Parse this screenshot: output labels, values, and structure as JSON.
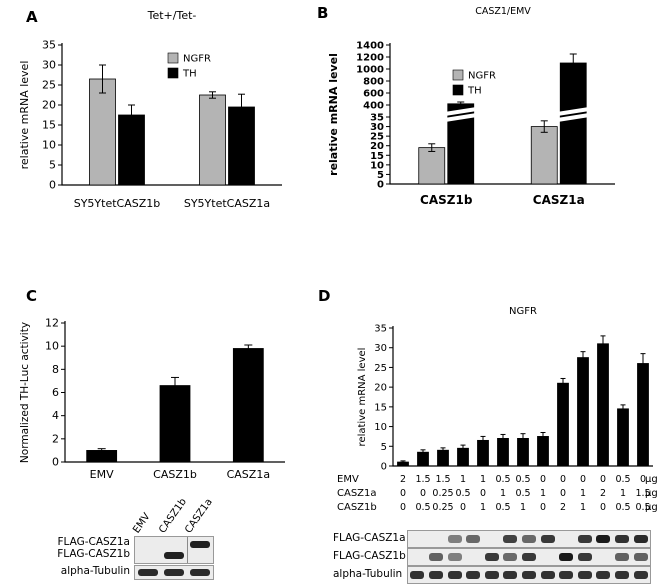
{
  "figure": {
    "background": "#ffffff"
  },
  "panels": {
    "a": {
      "letter": "A"
    },
    "b": {
      "letter": "B"
    },
    "c": {
      "letter": "C",
      "blot": {
        "lane_labels": [
          "EMV",
          "CASZ1b",
          "CASZ1a"
        ],
        "rows": [
          {
            "label": "FLAG-CASZ1a",
            "bands": [
              0,
              0,
              1
            ]
          },
          {
            "label": "FLAG-CASZ1b",
            "bands": [
              0,
              1,
              0
            ]
          },
          {
            "label": "alpha-Tubulin",
            "bands": [
              1,
              1,
              1
            ]
          }
        ]
      }
    },
    "d": {
      "letter": "D",
      "blot": {
        "rows": [
          {
            "label": "FLAG-CASZ1a",
            "bands": [
              0,
              0,
              0.35,
              0.5,
              0,
              0.75,
              0.5,
              0.8,
              0,
              0.8,
              1,
              0.85,
              0.9
            ]
          },
          {
            "label": "FLAG-CASZ1b",
            "bands": [
              0,
              0.55,
              0.35,
              0,
              0.8,
              0.5,
              0.8,
              0,
              1,
              0.8,
              0,
              0.55,
              0.55
            ]
          },
          {
            "label": "alpha-Tubulin",
            "bands": [
              0.85,
              0.85,
              0.85,
              0.85,
              0.85,
              0.85,
              0.85,
              0.85,
              0.85,
              0.85,
              0.85,
              0.85,
              0.85
            ]
          }
        ]
      }
    }
  },
  "chart_data": [
    {
      "id": "A",
      "type": "bar",
      "title": "Tet+/Tet-",
      "ylabel": "relative mRNA level",
      "ylim": [
        0,
        35
      ],
      "yticks": [
        0,
        5,
        10,
        15,
        20,
        25,
        30,
        35
      ],
      "categories": [
        "SY5YtetCASZ1b",
        "SY5YtetCASZ1a"
      ],
      "series": [
        {
          "name": "NGFR",
          "color": "#b4b4b4",
          "values": [
            26.5,
            22.5
          ],
          "errors": [
            3.5,
            0.8
          ]
        },
        {
          "name": "TH",
          "color": "#000000",
          "values": [
            17.5,
            19.5
          ],
          "errors": [
            2.5,
            3.2
          ]
        }
      ],
      "legend_position": "top-right",
      "grid": false
    },
    {
      "id": "B",
      "type": "bar",
      "title": "CASZ1/EMV",
      "ylabel": "relative mRNA level",
      "axis_break": {
        "lower": [
          0,
          35
        ],
        "upper": [
          400,
          1400
        ]
      },
      "yticks_lower": [
        0,
        5,
        10,
        15,
        20,
        25,
        30,
        35
      ],
      "yticks_upper": [
        400,
        600,
        800,
        1000,
        1200,
        1400
      ],
      "categories": [
        "CASZ1b",
        "CASZ1a"
      ],
      "series": [
        {
          "name": "NGFR",
          "color": "#b4b4b4",
          "values": [
            19,
            30
          ],
          "errors": [
            2,
            3
          ]
        },
        {
          "name": "TH",
          "color": "#000000",
          "values": [
            420,
            1100
          ],
          "errors": [
            30,
            150
          ]
        }
      ],
      "legend_position": "top-left",
      "grid": false
    },
    {
      "id": "C",
      "type": "bar",
      "title": "",
      "ylabel": "Normalized TH-Luc activity",
      "ylim": [
        0,
        12
      ],
      "yticks": [
        0,
        2,
        4,
        6,
        8,
        10,
        12
      ],
      "categories": [
        "EMV",
        "CASZ1b",
        "CASZ1a"
      ],
      "series": [
        {
          "name": "",
          "color": "#000000",
          "values": [
            1,
            6.6,
            9.8
          ],
          "errors": [
            0.15,
            0.7,
            0.3
          ]
        }
      ],
      "grid": false
    },
    {
      "id": "D",
      "type": "bar",
      "title": "NGFR",
      "ylabel": "relative mRNA level",
      "ylim": [
        0,
        35
      ],
      "yticks": [
        0,
        5,
        10,
        15,
        20,
        25,
        30,
        35
      ],
      "color": "#000000",
      "values": [
        1,
        3.5,
        4,
        4.5,
        6.5,
        7,
        7,
        7.5,
        21,
        27.5,
        31,
        14.5,
        26
      ],
      "errors": [
        0.3,
        0.6,
        0.6,
        0.8,
        1,
        1,
        1.2,
        1,
        1.2,
        1.5,
        2,
        1,
        2.5
      ],
      "table": {
        "unit": "µg",
        "rows": [
          {
            "label": "EMV",
            "values": [
              "2",
              "1.5",
              "1.5",
              "1",
              "1",
              "0.5",
              "0.5",
              "0",
              "0",
              "0",
              "0",
              "0.5",
              "0"
            ]
          },
          {
            "label": "CASZ1a",
            "values": [
              "0",
              "0",
              "0.25",
              "0.5",
              "0",
              "1",
              "0.5",
              "1",
              "0",
              "1",
              "2",
              "1",
              "1.5"
            ]
          },
          {
            "label": "CASZ1b",
            "values": [
              "0",
              "0.5",
              "0.25",
              "0",
              "1",
              "0.5",
              "1",
              "0",
              "2",
              "1",
              "0",
              "0.5",
              "0.5"
            ]
          }
        ]
      },
      "grid": false
    }
  ]
}
